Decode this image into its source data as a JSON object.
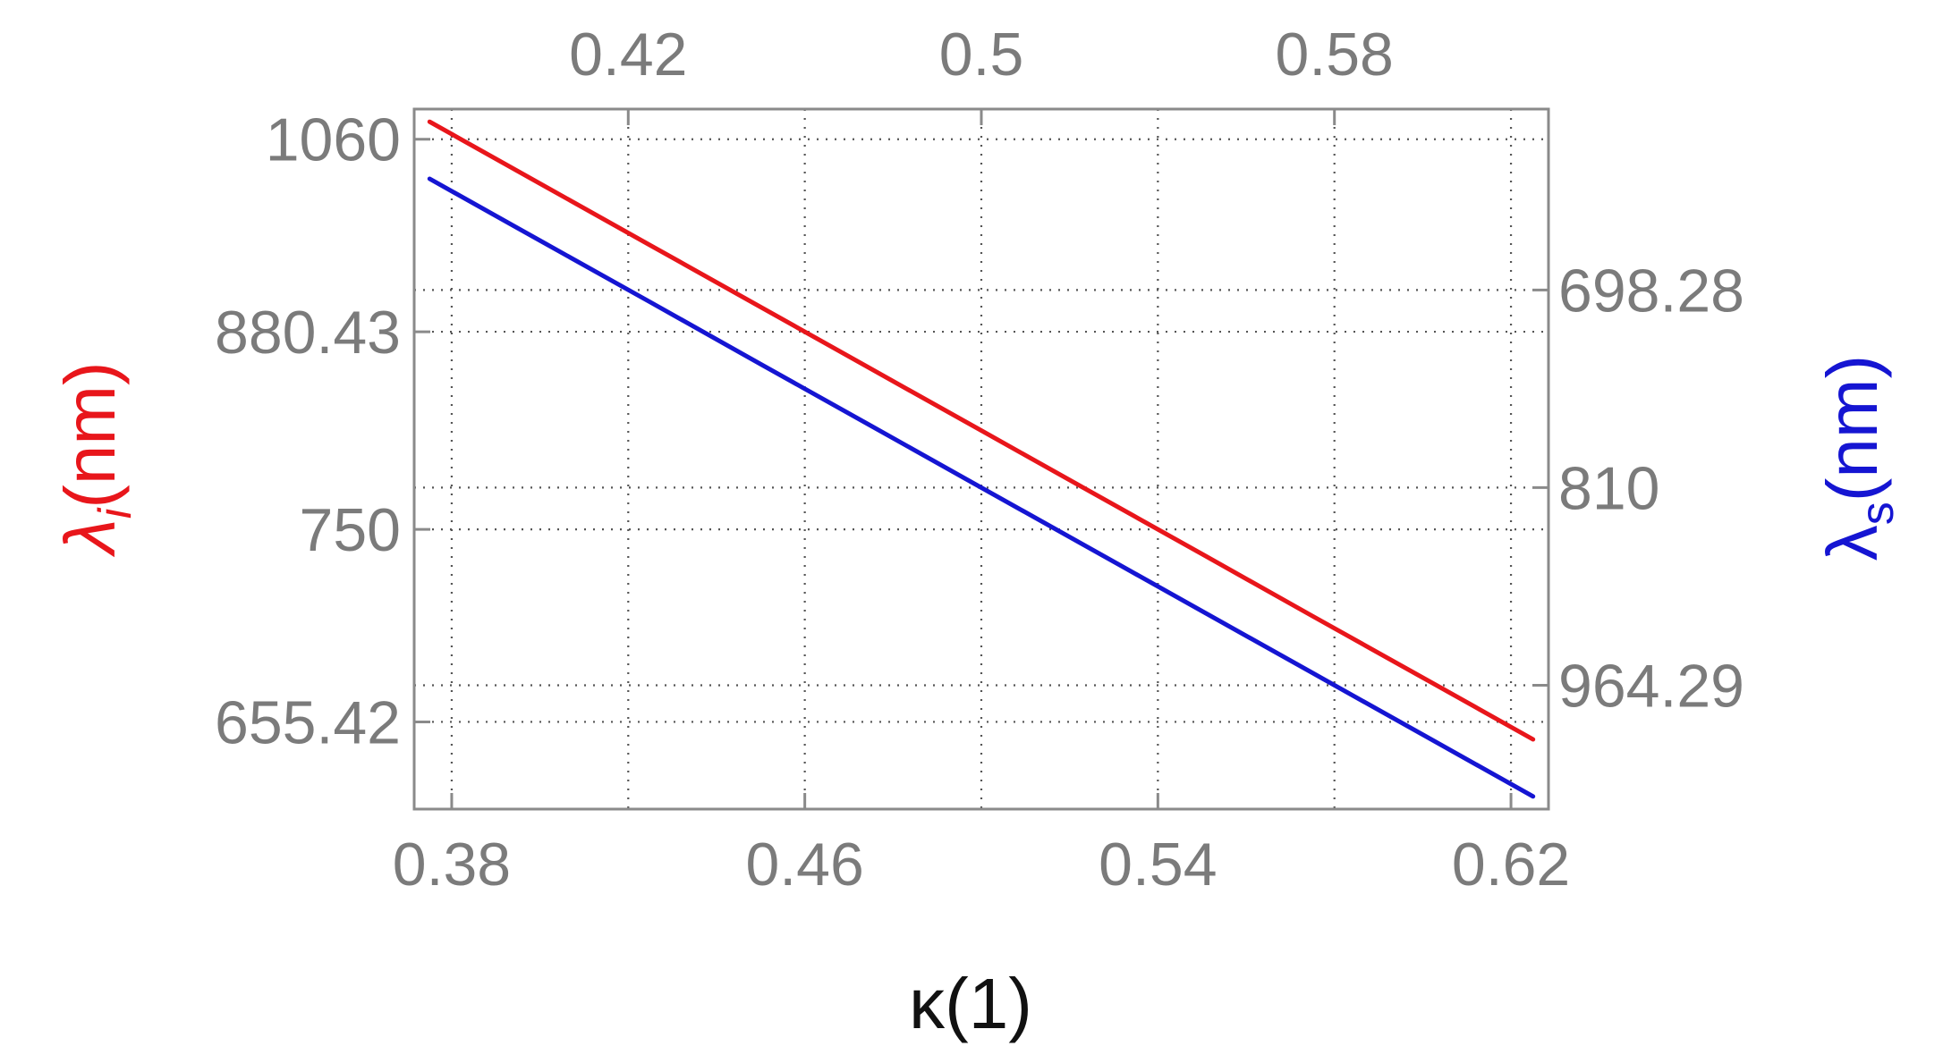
{
  "chart_data": {
    "type": "line",
    "xlabel": "κ(1)",
    "ylabel_left": {
      "symbol": "λ",
      "sub": "i",
      "unit": "(nm)"
    },
    "ylabel_right": {
      "symbol": "λ",
      "sub": "s",
      "unit": "(nm)"
    },
    "xlim": [
      0.3715,
      0.6285
    ],
    "bottom_ticks": [
      0.38,
      0.46,
      0.54,
      0.62
    ],
    "bottom_tick_labels": [
      "0.38",
      "0.46",
      "0.54",
      "0.62"
    ],
    "top_ticks": [
      0.42,
      0.5,
      0.58
    ],
    "top_tick_labels": [
      "0.42",
      "0.5",
      "0.58"
    ],
    "left_ticks": [
      1060,
      880.43,
      750,
      655.42
    ],
    "left_tick_labels": [
      "1060",
      "880.43",
      "750",
      "655.42"
    ],
    "right_ticks": [
      964.29,
      810,
      698.28
    ],
    "right_tick_labels": [
      "964.29",
      "810",
      "698.28"
    ],
    "grid": true,
    "series": [
      {
        "color": "#e8161b",
        "axis": "left",
        "x": [
          0.375,
          0.4,
          0.425,
          0.45,
          0.475,
          0.5,
          0.525,
          0.55,
          0.575,
          0.6,
          0.625
        ],
        "y": [
          1080,
          1012.5,
          952.9,
          900,
          852.6,
          810,
          771.4,
          736.4,
          704.3,
          675,
          648
        ]
      },
      {
        "color": "#1515d2",
        "axis": "right",
        "x": [
          0.375,
          0.4,
          0.425,
          0.45,
          0.475,
          0.5,
          0.525,
          0.55,
          0.575,
          0.6,
          0.625
        ],
        "y": [
          648,
          675,
          704.3,
          736.4,
          771.4,
          810,
          852.6,
          900,
          952.9,
          1012.5,
          1080
        ]
      }
    ]
  }
}
